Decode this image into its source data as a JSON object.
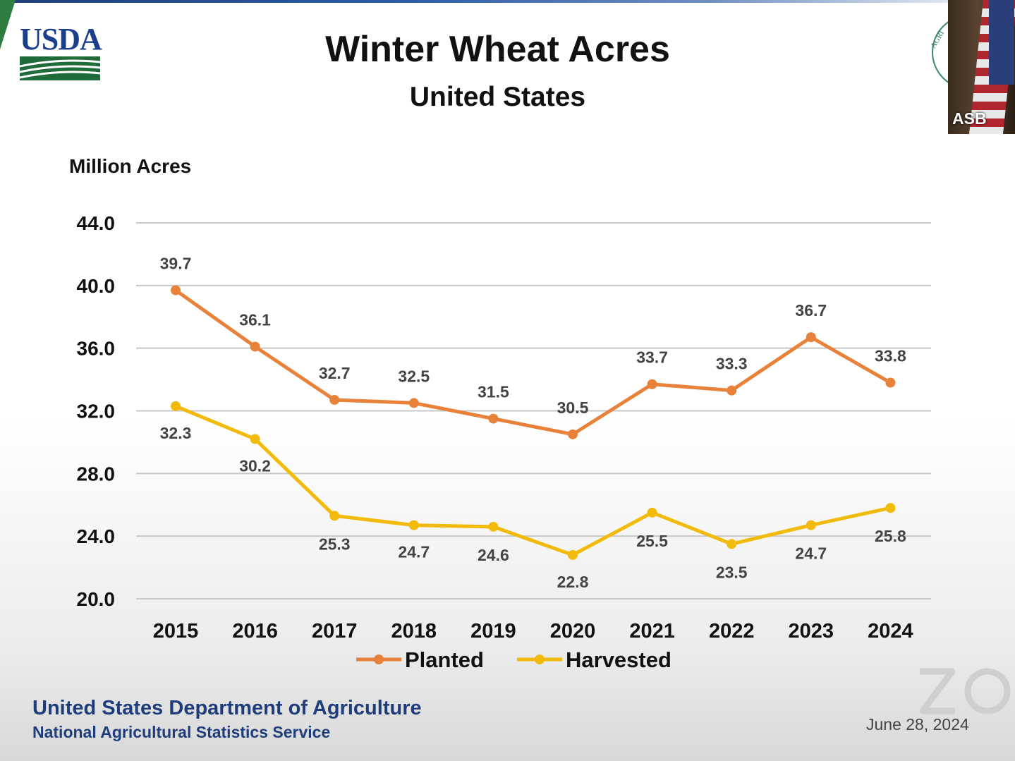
{
  "slide": {
    "logo_text": "USDA",
    "video_label": "ASB",
    "footer_org": "United States Department of Agriculture",
    "footer_agency": "National Agricultural Statistics Service",
    "date": "June 28, 2024",
    "seal_text": "AGRI"
  },
  "colors": {
    "planted": "#e8823a",
    "harvested": "#f2bb0c",
    "grid": "#c8c8c8",
    "brand_blue": "#1f3d7a"
  },
  "chart_data": {
    "type": "line",
    "title": "Winter Wheat Acres",
    "subtitle": "United States",
    "ylabel": "Million Acres",
    "xlabel": "",
    "categories": [
      "2015",
      "2016",
      "2017",
      "2018",
      "2019",
      "2020",
      "2021",
      "2022",
      "2023",
      "2024"
    ],
    "ylim": [
      20.0,
      44.0
    ],
    "yticks": [
      "20.0",
      "24.0",
      "28.0",
      "32.0",
      "36.0",
      "40.0",
      "44.0"
    ],
    "grid": true,
    "legend_position": "bottom-center",
    "series": [
      {
        "name": "Planted",
        "values": [
          39.7,
          36.1,
          32.7,
          32.5,
          31.5,
          30.5,
          33.7,
          33.3,
          36.7,
          33.8
        ],
        "labels": [
          "39.7",
          "36.1",
          "32.7",
          "32.5",
          "31.5",
          "30.5",
          "33.7",
          "33.3",
          "36.7",
          "33.8"
        ]
      },
      {
        "name": "Harvested",
        "values": [
          32.3,
          30.2,
          25.3,
          24.7,
          24.6,
          22.8,
          25.5,
          23.5,
          24.7,
          25.8
        ],
        "labels": [
          "32.3",
          "30.2",
          "25.3",
          "24.7",
          "24.6",
          "22.8",
          "25.5",
          "23.5",
          "24.7",
          "25.8"
        ]
      }
    ]
  }
}
